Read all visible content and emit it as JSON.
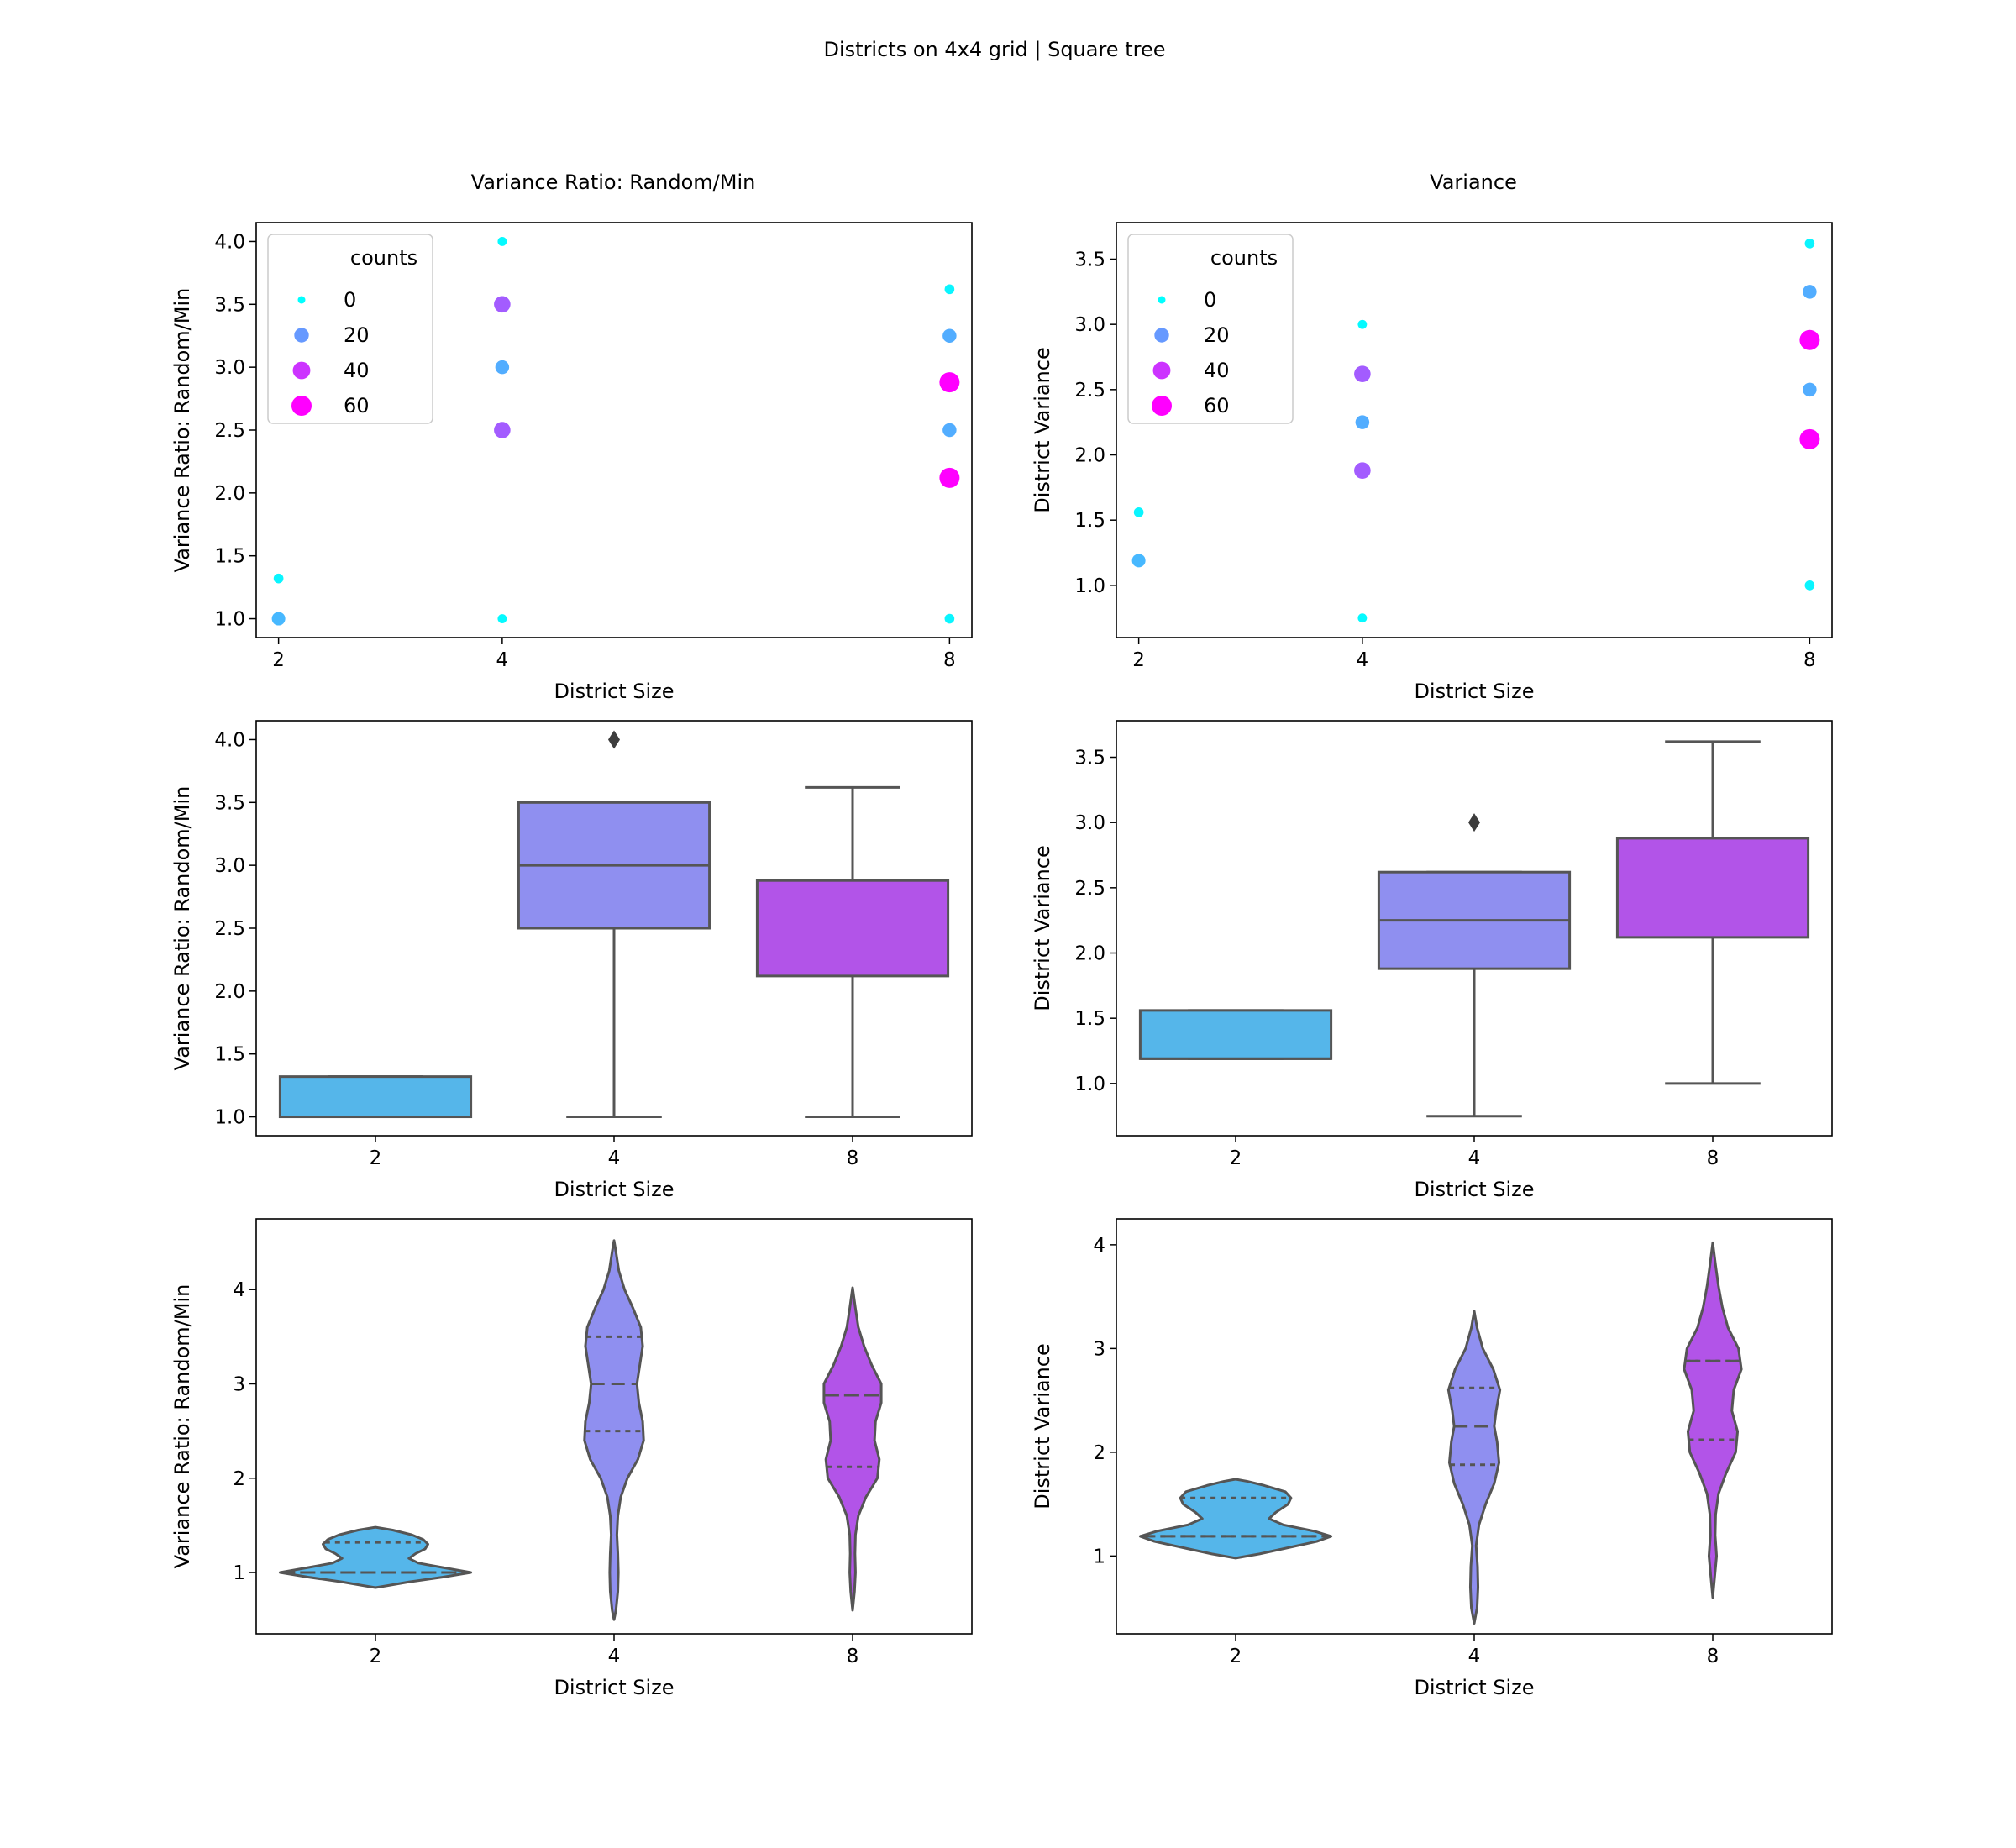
{
  "figure": {
    "title": "Districts on 4x4 grid | Square tree"
  },
  "colors": {
    "scale_0": "#00ffff",
    "scale_20": "#6699ff",
    "scale_40": "#cc33ff",
    "scale_60": "#ff00ff",
    "box_2": "#55b6ea",
    "box_4": "#8f8ff0",
    "box_8": "#b254e8",
    "line": "#555555"
  },
  "legend": {
    "title": "counts",
    "entries": [
      "0",
      "20",
      "40",
      "60"
    ],
    "placement": "top-left"
  },
  "chart_data": [
    {
      "id": "scatter_ratio",
      "type": "scatter",
      "title": "Variance Ratio: Random/Min",
      "xlabel": "District Size",
      "ylabel": "Variance Ratio: Random/Min",
      "categories": [
        "2",
        "4",
        "8"
      ],
      "x_axis": "linear",
      "xlim": [
        1.8,
        8.2
      ],
      "ylim": [
        0.85,
        4.15
      ],
      "yticks": [
        "1.0",
        "1.5",
        "2.0",
        "2.5",
        "3.0",
        "3.5",
        "4.0"
      ],
      "grid": false,
      "points": [
        {
          "x": 2,
          "y": 1.32,
          "count": 2
        },
        {
          "x": 2,
          "y": 1.0,
          "count": 14
        },
        {
          "x": 4,
          "y": 4.0,
          "count": 1
        },
        {
          "x": 4,
          "y": 3.5,
          "count": 32
        },
        {
          "x": 4,
          "y": 3.0,
          "count": 16
        },
        {
          "x": 4,
          "y": 2.5,
          "count": 32
        },
        {
          "x": 4,
          "y": 1.0,
          "count": 1
        },
        {
          "x": 8,
          "y": 3.62,
          "count": 2
        },
        {
          "x": 8,
          "y": 3.25,
          "count": 16
        },
        {
          "x": 8,
          "y": 2.88,
          "count": 64
        },
        {
          "x": 8,
          "y": 2.5,
          "count": 16
        },
        {
          "x": 8,
          "y": 2.12,
          "count": 64
        },
        {
          "x": 8,
          "y": 1.0,
          "count": 2
        }
      ]
    },
    {
      "id": "scatter_var",
      "type": "scatter",
      "title": "Variance",
      "xlabel": "District Size",
      "ylabel": "District Variance",
      "categories": [
        "2",
        "4",
        "8"
      ],
      "x_axis": "linear",
      "xlim": [
        1.8,
        8.2
      ],
      "ylim": [
        0.6,
        3.78
      ],
      "yticks": [
        "1.0",
        "1.5",
        "2.0",
        "2.5",
        "3.0",
        "3.5"
      ],
      "grid": false,
      "points": [
        {
          "x": 2,
          "y": 1.56,
          "count": 2
        },
        {
          "x": 2,
          "y": 1.19,
          "count": 14
        },
        {
          "x": 4,
          "y": 3.0,
          "count": 1
        },
        {
          "x": 4,
          "y": 2.62,
          "count": 32
        },
        {
          "x": 4,
          "y": 2.25,
          "count": 16
        },
        {
          "x": 4,
          "y": 1.88,
          "count": 32
        },
        {
          "x": 4,
          "y": 0.75,
          "count": 1
        },
        {
          "x": 8,
          "y": 3.62,
          "count": 2
        },
        {
          "x": 8,
          "y": 3.25,
          "count": 16
        },
        {
          "x": 8,
          "y": 2.88,
          "count": 64
        },
        {
          "x": 8,
          "y": 2.5,
          "count": 16
        },
        {
          "x": 8,
          "y": 2.12,
          "count": 64
        },
        {
          "x": 8,
          "y": 1.0,
          "count": 2
        }
      ]
    },
    {
      "id": "box_ratio",
      "type": "box",
      "xlabel": "District Size",
      "ylabel": "Variance Ratio: Random/Min",
      "categories": [
        "2",
        "4",
        "8"
      ],
      "ylim": [
        0.85,
        4.15
      ],
      "yticks": [
        "1.0",
        "1.5",
        "2.0",
        "2.5",
        "3.0",
        "3.5",
        "4.0"
      ],
      "grid": false,
      "boxes": [
        {
          "category": "2",
          "whisker_low": 1.0,
          "q1": 1.0,
          "median": 1.0,
          "q3": 1.32,
          "whisker_high": 1.32,
          "outliers": []
        },
        {
          "category": "4",
          "whisker_low": 1.0,
          "q1": 2.5,
          "median": 3.0,
          "q3": 3.5,
          "whisker_high": 3.5,
          "outliers": [
            4.0
          ]
        },
        {
          "category": "8",
          "whisker_low": 1.0,
          "q1": 2.12,
          "median": 2.88,
          "q3": 2.88,
          "whisker_high": 3.62,
          "outliers": []
        }
      ]
    },
    {
      "id": "box_var",
      "type": "box",
      "xlabel": "District Size",
      "ylabel": "District Variance",
      "categories": [
        "2",
        "4",
        "8"
      ],
      "ylim": [
        0.6,
        3.78
      ],
      "yticks": [
        "1.0",
        "1.5",
        "2.0",
        "2.5",
        "3.0",
        "3.5"
      ],
      "grid": false,
      "boxes": [
        {
          "category": "2",
          "whisker_low": 1.19,
          "q1": 1.19,
          "median": 1.19,
          "q3": 1.56,
          "whisker_high": 1.56,
          "outliers": []
        },
        {
          "category": "4",
          "whisker_low": 0.75,
          "q1": 1.88,
          "median": 2.25,
          "q3": 2.62,
          "whisker_high": 2.62,
          "outliers": [
            3.0
          ]
        },
        {
          "category": "8",
          "whisker_low": 1.0,
          "q1": 2.12,
          "median": 2.88,
          "q3": 2.88,
          "whisker_high": 3.62,
          "outliers": []
        }
      ]
    },
    {
      "id": "violin_ratio",
      "type": "violin",
      "xlabel": "District Size",
      "ylabel": "Variance Ratio: Random/Min",
      "categories": [
        "2",
        "4",
        "8"
      ],
      "ylim": [
        0.35,
        4.75
      ],
      "yticks": [
        "1",
        "2",
        "3",
        "4"
      ],
      "grid": false,
      "violins": [
        {
          "category": "2",
          "q1": 1.0,
          "median": 1.0,
          "q3": 1.32,
          "profile": [
            [
              0.84,
              0.0
            ],
            [
              0.86,
              0.12
            ],
            [
              0.9,
              0.35
            ],
            [
              0.95,
              0.7
            ],
            [
              1.0,
              1.0
            ],
            [
              1.05,
              0.72
            ],
            [
              1.1,
              0.45
            ],
            [
              1.15,
              0.35
            ],
            [
              1.2,
              0.42
            ],
            [
              1.25,
              0.52
            ],
            [
              1.3,
              0.55
            ],
            [
              1.35,
              0.5
            ],
            [
              1.4,
              0.38
            ],
            [
              1.45,
              0.18
            ],
            [
              1.48,
              0.0
            ]
          ]
        },
        {
          "category": "4",
          "q1": 2.5,
          "median": 3.0,
          "q3": 3.5,
          "profile": [
            [
              0.5,
              0.0
            ],
            [
              0.6,
              0.02
            ],
            [
              0.8,
              0.04
            ],
            [
              1.0,
              0.045
            ],
            [
              1.2,
              0.04
            ],
            [
              1.4,
              0.03
            ],
            [
              1.6,
              0.04
            ],
            [
              1.8,
              0.07
            ],
            [
              2.0,
              0.14
            ],
            [
              2.2,
              0.25
            ],
            [
              2.4,
              0.31
            ],
            [
              2.6,
              0.3
            ],
            [
              2.8,
              0.26
            ],
            [
              3.0,
              0.24
            ],
            [
              3.2,
              0.27
            ],
            [
              3.4,
              0.3
            ],
            [
              3.6,
              0.28
            ],
            [
              3.8,
              0.2
            ],
            [
              4.0,
              0.11
            ],
            [
              4.2,
              0.05
            ],
            [
              4.4,
              0.02
            ],
            [
              4.52,
              0.0
            ]
          ]
        },
        {
          "category": "8",
          "q1": 2.12,
          "median": 2.88,
          "q3": 2.88,
          "profile": [
            [
              0.6,
              0.0
            ],
            [
              0.8,
              0.02
            ],
            [
              1.0,
              0.03
            ],
            [
              1.2,
              0.025
            ],
            [
              1.4,
              0.03
            ],
            [
              1.6,
              0.06
            ],
            [
              1.8,
              0.14
            ],
            [
              2.0,
              0.26
            ],
            [
              2.2,
              0.28
            ],
            [
              2.4,
              0.23
            ],
            [
              2.6,
              0.24
            ],
            [
              2.8,
              0.3
            ],
            [
              3.0,
              0.3
            ],
            [
              3.2,
              0.2
            ],
            [
              3.4,
              0.12
            ],
            [
              3.6,
              0.06
            ],
            [
              3.8,
              0.03
            ],
            [
              4.02,
              0.0
            ]
          ]
        }
      ]
    },
    {
      "id": "violin_var",
      "type": "violin",
      "xlabel": "District Size",
      "ylabel": "District Variance",
      "categories": [
        "2",
        "4",
        "8"
      ],
      "ylim": [
        0.25,
        4.25
      ],
      "yticks": [
        "1",
        "2",
        "3",
        "4"
      ],
      "grid": false,
      "violins": [
        {
          "category": "2",
          "q1": 1.19,
          "median": 1.19,
          "q3": 1.56,
          "profile": [
            [
              0.98,
              0.0
            ],
            [
              1.02,
              0.25
            ],
            [
              1.08,
              0.55
            ],
            [
              1.14,
              0.85
            ],
            [
              1.19,
              1.0
            ],
            [
              1.24,
              0.82
            ],
            [
              1.3,
              0.5
            ],
            [
              1.36,
              0.35
            ],
            [
              1.42,
              0.42
            ],
            [
              1.5,
              0.55
            ],
            [
              1.56,
              0.58
            ],
            [
              1.62,
              0.52
            ],
            [
              1.68,
              0.3
            ],
            [
              1.72,
              0.12
            ],
            [
              1.74,
              0.0
            ]
          ]
        },
        {
          "category": "4",
          "q1": 1.88,
          "median": 2.25,
          "q3": 2.62,
          "profile": [
            [
              0.35,
              0.0
            ],
            [
              0.5,
              0.03
            ],
            [
              0.7,
              0.04
            ],
            [
              0.9,
              0.035
            ],
            [
              1.1,
              0.02
            ],
            [
              1.3,
              0.05
            ],
            [
              1.5,
              0.12
            ],
            [
              1.7,
              0.21
            ],
            [
              1.9,
              0.26
            ],
            [
              2.1,
              0.24
            ],
            [
              2.25,
              0.21
            ],
            [
              2.4,
              0.23
            ],
            [
              2.6,
              0.27
            ],
            [
              2.8,
              0.2
            ],
            [
              3.0,
              0.09
            ],
            [
              3.2,
              0.03
            ],
            [
              3.36,
              0.0
            ]
          ]
        },
        {
          "category": "8",
          "q1": 2.12,
          "median": 2.88,
          "q3": 2.88,
          "profile": [
            [
              0.6,
              0.0
            ],
            [
              0.8,
              0.02
            ],
            [
              1.0,
              0.04
            ],
            [
              1.2,
              0.025
            ],
            [
              1.4,
              0.03
            ],
            [
              1.6,
              0.06
            ],
            [
              1.8,
              0.14
            ],
            [
              2.0,
              0.24
            ],
            [
              2.2,
              0.26
            ],
            [
              2.4,
              0.2
            ],
            [
              2.6,
              0.22
            ],
            [
              2.8,
              0.3
            ],
            [
              3.0,
              0.27
            ],
            [
              3.2,
              0.16
            ],
            [
              3.4,
              0.1
            ],
            [
              3.6,
              0.06
            ],
            [
              3.8,
              0.03
            ],
            [
              4.02,
              0.0
            ]
          ]
        }
      ]
    }
  ]
}
